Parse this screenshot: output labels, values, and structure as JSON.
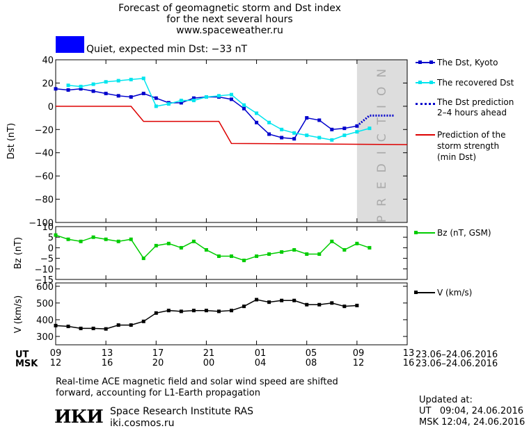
{
  "header": {
    "title_line1": "Forecast of geomagnetic storm and Dst index",
    "title_line2": "for the next several hours",
    "website": "www.spaceweather.ru"
  },
  "status": {
    "text": "Quiet, expected min Dst: −33 nT",
    "color": "#0000ff"
  },
  "legend": {
    "dst_kyoto": "The Dst, Kyoto",
    "recovered": "The recovered Dst",
    "prediction_line1": "The Dst prediction",
    "prediction_line2": "2–4 hours ahead",
    "storm_line1": "Prediction of the",
    "storm_line2": "storm strength",
    "storm_line3": "(min Dst)",
    "bz": "Bz (nT, GSM)",
    "v": "V (km/s)"
  },
  "xaxis": {
    "ut_label": "UT",
    "msk_label": "MSK",
    "ut_ticks": [
      "09",
      "13",
      "17",
      "21",
      "01",
      "05",
      "09",
      "13"
    ],
    "msk_ticks": [
      "12",
      "16",
      "20",
      "00",
      "04",
      "08",
      "12",
      "16"
    ],
    "date_range_ut": "23.06–24.06.2016",
    "date_range_msk": "23.06–24.06.2016"
  },
  "footer": {
    "note_line1": "Real-time ACE magnetic field and solar wind speed are shifted",
    "note_line2": "forward, accounting for L1-Earth propagation",
    "logo": "ИКИ",
    "institute": "Space Research Institute RAS",
    "site": "iki.cosmos.ru",
    "updated_label": "Updated at:",
    "updated_ut": "UT   09:04, 24.06.2016",
    "updated_msk": "MSK 12:04, 24.06.2016"
  },
  "chart_data": [
    {
      "type": "line",
      "panel": "dst",
      "ylabel": "Dst (nT)",
      "ylim": [
        -100,
        40
      ],
      "yticks": [
        40,
        20,
        0,
        -20,
        -40,
        -60,
        -80,
        -100
      ],
      "xlim": [
        0,
        28
      ],
      "x_unit": "hours since 09 UT, 23.06.2016",
      "prediction_band": {
        "from": 24,
        "to": 28,
        "label": "PREDICTION",
        "color": "#dddddd"
      },
      "series": [
        {
          "name": "The Dst, Kyoto",
          "color": "#0000cc",
          "marker": "square",
          "style": "solid",
          "x": [
            0,
            1,
            2,
            3,
            4,
            5,
            6,
            7,
            8,
            9,
            10,
            11,
            12,
            13,
            14,
            15,
            16,
            17,
            18,
            19,
            20,
            21,
            22,
            23,
            24
          ],
          "y": [
            15,
            14,
            15,
            13,
            11,
            9,
            8,
            11,
            7,
            3,
            3,
            7,
            8,
            8,
            6,
            -2,
            -14,
            -24,
            -27,
            -28,
            -10,
            -12,
            -20,
            -19,
            -17
          ]
        },
        {
          "name": "The recovered Dst",
          "color": "#00e5ee",
          "marker": "square",
          "style": "solid",
          "x": [
            1,
            2,
            3,
            4,
            5,
            6,
            7,
            8,
            9,
            10,
            11,
            12,
            13,
            14,
            15,
            16,
            17,
            18,
            19,
            20,
            21,
            22,
            23,
            24,
            25
          ],
          "y": [
            18,
            17,
            19,
            21,
            22,
            23,
            24,
            0,
            2,
            5,
            5,
            8,
            9,
            10,
            1,
            -6,
            -14,
            -20,
            -23,
            -25,
            -27,
            -29,
            -25,
            -22,
            -19
          ]
        },
        {
          "name": "The Dst prediction 2–4 hours ahead",
          "color": "#0000cc",
          "style": "dotted",
          "x": [
            24,
            25,
            26,
            27
          ],
          "y": [
            -17,
            -8,
            -8,
            -8
          ]
        },
        {
          "name": "Prediction of the storm strength (min Dst)",
          "color": "#dd0000",
          "style": "solid",
          "x": [
            0,
            6,
            7,
            13,
            14,
            28
          ],
          "y": [
            0,
            0,
            -13,
            -13,
            -32,
            -33
          ]
        }
      ]
    },
    {
      "type": "line",
      "panel": "bz",
      "ylabel": "Bz (nT)",
      "ylim": [
        -15,
        10
      ],
      "yticks": [
        10,
        5,
        0,
        -5,
        -10,
        -15
      ],
      "xlim": [
        0,
        28
      ],
      "series": [
        {
          "name": "Bz (nT, GSM)",
          "color": "#00cc00",
          "marker": "square",
          "style": "solid",
          "x": [
            0,
            1,
            2,
            3,
            4,
            5,
            6,
            7,
            8,
            9,
            10,
            11,
            12,
            13,
            14,
            15,
            16,
            17,
            18,
            19,
            20,
            21,
            22,
            23,
            24,
            25
          ],
          "y": [
            6,
            4,
            3,
            5,
            4,
            3,
            4,
            -5,
            1,
            2,
            0,
            3,
            -1,
            -4,
            -4,
            -6,
            -4,
            -3,
            -2,
            -1,
            -3,
            -3,
            3,
            -1,
            2,
            0
          ]
        }
      ]
    },
    {
      "type": "line",
      "panel": "v",
      "ylabel": "V (km/s)",
      "ylim": [
        250,
        620
      ],
      "yticks": [
        600,
        500,
        400,
        300
      ],
      "xlim": [
        0,
        28
      ],
      "series": [
        {
          "name": "V (km/s)",
          "color": "#000000",
          "marker": "square",
          "style": "solid",
          "x": [
            0,
            1,
            2,
            3,
            4,
            5,
            6,
            7,
            8,
            9,
            10,
            11,
            12,
            13,
            14,
            15,
            16,
            17,
            18,
            19,
            20,
            21,
            22,
            23,
            24
          ],
          "y": [
            365,
            360,
            348,
            348,
            345,
            368,
            368,
            390,
            440,
            455,
            450,
            455,
            455,
            450,
            455,
            480,
            520,
            505,
            515,
            515,
            490,
            490,
            500,
            480,
            485
          ]
        }
      ]
    }
  ]
}
